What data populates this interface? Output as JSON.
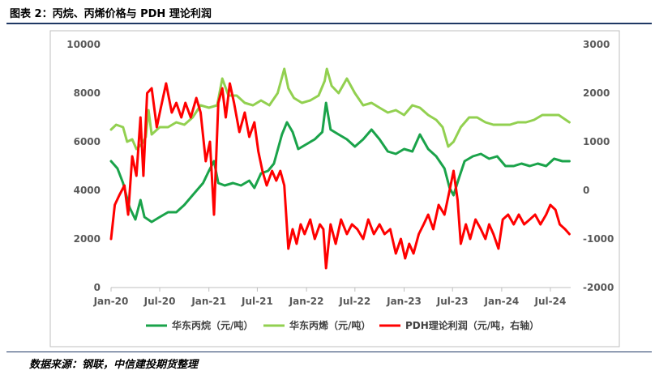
{
  "figure": {
    "title": "图表 2：丙烷、丙烯价格与 PDH 理论利润",
    "source": "数据来源：钢联，中信建投期货整理"
  },
  "colors": {
    "propane": "#1aa34a",
    "propylene": "#92d050",
    "pdh": "#ff0000",
    "axis": "#bfbfbf",
    "tick_text": "#595959"
  },
  "chart_data": {
    "type": "line",
    "title": "",
    "xlabel": "",
    "ylabel": "",
    "x_ticks": [
      "Jan-20",
      "Jul-20",
      "Jan-21",
      "Jul-21",
      "Jan-22",
      "Jul-22",
      "Jan-23",
      "Jul-23",
      "Jan-24",
      "Jul-24"
    ],
    "x_range": [
      "2020-01-01",
      "2024-09-15"
    ],
    "y_left": {
      "ylim": [
        0,
        10000
      ],
      "ticks": [
        "0",
        "2000",
        "4000",
        "6000",
        "8000",
        "10000"
      ]
    },
    "y_right": {
      "ylim": [
        -2000,
        3000
      ],
      "ticks": [
        "-2000",
        "-1000",
        "0",
        "1000",
        "2000",
        "3000"
      ]
    },
    "legend_position": "bottom",
    "grid": false,
    "series": [
      {
        "name": "华东丙烷（元/吨）",
        "axis": "left",
        "color": "#1aa34a",
        "points": [
          [
            "2020-01-01",
            5200
          ],
          [
            "2020-01-25",
            4900
          ],
          [
            "2020-02-15",
            4300
          ],
          [
            "2020-03-10",
            3300
          ],
          [
            "2020-04-01",
            2800
          ],
          [
            "2020-04-20",
            3600
          ],
          [
            "2020-05-05",
            2900
          ],
          [
            "2020-06-01",
            2700
          ],
          [
            "2020-07-01",
            2900
          ],
          [
            "2020-08-01",
            3100
          ],
          [
            "2020-09-01",
            3100
          ],
          [
            "2020-10-01",
            3400
          ],
          [
            "2020-11-01",
            3800
          ],
          [
            "2020-12-10",
            4300
          ],
          [
            "2021-01-01",
            4800
          ],
          [
            "2021-01-20",
            5200
          ],
          [
            "2021-02-05",
            4300
          ],
          [
            "2021-03-01",
            4200
          ],
          [
            "2021-04-01",
            4300
          ],
          [
            "2021-05-01",
            4200
          ],
          [
            "2021-06-01",
            4400
          ],
          [
            "2021-06-20",
            4100
          ],
          [
            "2021-07-15",
            4700
          ],
          [
            "2021-08-10",
            4800
          ],
          [
            "2021-09-01",
            5100
          ],
          [
            "2021-10-01",
            6300
          ],
          [
            "2021-10-20",
            6800
          ],
          [
            "2021-11-10",
            6400
          ],
          [
            "2021-12-01",
            5700
          ],
          [
            "2022-01-01",
            5900
          ],
          [
            "2022-02-01",
            6100
          ],
          [
            "2022-03-01",
            6400
          ],
          [
            "2022-03-15",
            7600
          ],
          [
            "2022-04-01",
            6500
          ],
          [
            "2022-05-01",
            6300
          ],
          [
            "2022-06-01",
            6100
          ],
          [
            "2022-07-01",
            5800
          ],
          [
            "2022-08-01",
            6100
          ],
          [
            "2022-09-01",
            6500
          ],
          [
            "2022-10-01",
            6100
          ],
          [
            "2022-11-01",
            5600
          ],
          [
            "2022-12-01",
            5500
          ],
          [
            "2023-01-01",
            5700
          ],
          [
            "2023-02-01",
            5600
          ],
          [
            "2023-03-01",
            6300
          ],
          [
            "2023-04-01",
            5700
          ],
          [
            "2023-05-01",
            5400
          ],
          [
            "2023-06-01",
            4900
          ],
          [
            "2023-06-20",
            4100
          ],
          [
            "2023-07-05",
            3800
          ],
          [
            "2023-07-25",
            4500
          ],
          [
            "2023-08-15",
            5200
          ],
          [
            "2023-09-15",
            5400
          ],
          [
            "2023-10-15",
            5500
          ],
          [
            "2023-11-15",
            5300
          ],
          [
            "2023-12-15",
            5400
          ],
          [
            "2024-01-15",
            5000
          ],
          [
            "2024-02-15",
            5000
          ],
          [
            "2024-03-15",
            5100
          ],
          [
            "2024-04-15",
            5000
          ],
          [
            "2024-05-15",
            5100
          ],
          [
            "2024-06-15",
            5000
          ],
          [
            "2024-07-15",
            5300
          ],
          [
            "2024-08-15",
            5200
          ],
          [
            "2024-09-10",
            5200
          ]
        ]
      },
      {
        "name": "华东丙烯（元/吨）",
        "axis": "left",
        "color": "#92d050",
        "points": [
          [
            "2020-01-01",
            6500
          ],
          [
            "2020-01-20",
            6700
          ],
          [
            "2020-02-15",
            6600
          ],
          [
            "2020-03-01",
            6000
          ],
          [
            "2020-03-20",
            6100
          ],
          [
            "2020-04-05",
            5700
          ],
          [
            "2020-04-25",
            5900
          ],
          [
            "2020-05-10",
            6200
          ],
          [
            "2020-05-20",
            7300
          ],
          [
            "2020-06-01",
            6300
          ],
          [
            "2020-07-01",
            6600
          ],
          [
            "2020-08-01",
            6600
          ],
          [
            "2020-09-01",
            6800
          ],
          [
            "2020-10-01",
            6700
          ],
          [
            "2020-11-01",
            7000
          ],
          [
            "2020-12-01",
            7500
          ],
          [
            "2021-01-01",
            7400
          ],
          [
            "2021-02-01",
            7500
          ],
          [
            "2021-02-20",
            8600
          ],
          [
            "2021-03-15",
            7900
          ],
          [
            "2021-04-15",
            7900
          ],
          [
            "2021-05-15",
            7600
          ],
          [
            "2021-06-15",
            7500
          ],
          [
            "2021-07-15",
            7700
          ],
          [
            "2021-08-15",
            7500
          ],
          [
            "2021-09-15",
            8000
          ],
          [
            "2021-10-10",
            9000
          ],
          [
            "2021-10-25",
            8200
          ],
          [
            "2021-11-15",
            7800
          ],
          [
            "2021-12-15",
            7600
          ],
          [
            "2022-01-15",
            7700
          ],
          [
            "2022-02-15",
            7900
          ],
          [
            "2022-03-10",
            8500
          ],
          [
            "2022-03-18",
            9000
          ],
          [
            "2022-04-05",
            8300
          ],
          [
            "2022-05-01",
            8000
          ],
          [
            "2022-06-01",
            8600
          ],
          [
            "2022-07-01",
            8000
          ],
          [
            "2022-08-01",
            7500
          ],
          [
            "2022-09-01",
            7600
          ],
          [
            "2022-10-01",
            7400
          ],
          [
            "2022-11-01",
            7200
          ],
          [
            "2022-12-01",
            7300
          ],
          [
            "2023-01-01",
            7100
          ],
          [
            "2023-02-01",
            7500
          ],
          [
            "2023-03-01",
            7400
          ],
          [
            "2023-04-01",
            7100
          ],
          [
            "2023-05-01",
            6900
          ],
          [
            "2023-05-25",
            6600
          ],
          [
            "2023-06-15",
            5800
          ],
          [
            "2023-07-05",
            6000
          ],
          [
            "2023-08-01",
            6600
          ],
          [
            "2023-09-01",
            7000
          ],
          [
            "2023-10-01",
            7000
          ],
          [
            "2023-11-01",
            6800
          ],
          [
            "2023-12-01",
            6700
          ],
          [
            "2024-01-01",
            6700
          ],
          [
            "2024-02-01",
            6700
          ],
          [
            "2024-03-01",
            6800
          ],
          [
            "2024-04-01",
            6800
          ],
          [
            "2024-05-01",
            6900
          ],
          [
            "2024-06-01",
            7100
          ],
          [
            "2024-07-01",
            7100
          ],
          [
            "2024-08-01",
            7100
          ],
          [
            "2024-09-10",
            6800
          ]
        ]
      },
      {
        "name": "PDH理论利润（元/吨，右轴）",
        "axis": "right",
        "color": "#ff0000",
        "points": [
          [
            "2020-01-01",
            -1000
          ],
          [
            "2020-01-15",
            -300
          ],
          [
            "2020-02-01",
            -100
          ],
          [
            "2020-02-20",
            100
          ],
          [
            "2020-03-05",
            -500
          ],
          [
            "2020-03-20",
            700
          ],
          [
            "2020-04-05",
            300
          ],
          [
            "2020-04-20",
            1500
          ],
          [
            "2020-05-01",
            300
          ],
          [
            "2020-05-15",
            2000
          ],
          [
            "2020-06-01",
            2100
          ],
          [
            "2020-06-20",
            1300
          ],
          [
            "2020-07-05",
            1700
          ],
          [
            "2020-07-25",
            2200
          ],
          [
            "2020-08-15",
            1600
          ],
          [
            "2020-09-01",
            1800
          ],
          [
            "2020-09-20",
            1500
          ],
          [
            "2020-10-05",
            1800
          ],
          [
            "2020-10-25",
            1500
          ],
          [
            "2020-11-15",
            1900
          ],
          [
            "2020-12-01",
            1600
          ],
          [
            "2020-12-20",
            600
          ],
          [
            "2021-01-05",
            1000
          ],
          [
            "2021-01-20",
            -500
          ],
          [
            "2021-02-05",
            1800
          ],
          [
            "2021-02-20",
            2100
          ],
          [
            "2021-03-05",
            1500
          ],
          [
            "2021-03-20",
            2200
          ],
          [
            "2021-04-05",
            1800
          ],
          [
            "2021-04-25",
            1200
          ],
          [
            "2021-05-15",
            1600
          ],
          [
            "2021-06-01",
            1100
          ],
          [
            "2021-06-20",
            1400
          ],
          [
            "2021-07-05",
            800
          ],
          [
            "2021-07-20",
            400
          ],
          [
            "2021-08-05",
            100
          ],
          [
            "2021-08-25",
            400
          ],
          [
            "2021-09-10",
            200
          ],
          [
            "2021-09-25",
            400
          ],
          [
            "2021-10-10",
            100
          ],
          [
            "2021-10-25",
            -1200
          ],
          [
            "2021-11-10",
            -800
          ],
          [
            "2021-11-25",
            -1100
          ],
          [
            "2021-12-10",
            -700
          ],
          [
            "2021-12-25",
            -900
          ],
          [
            "2022-01-15",
            -600
          ],
          [
            "2022-02-01",
            -1000
          ],
          [
            "2022-02-20",
            -700
          ],
          [
            "2022-03-05",
            -800
          ],
          [
            "2022-03-15",
            -1600
          ],
          [
            "2022-04-01",
            -700
          ],
          [
            "2022-04-20",
            -1100
          ],
          [
            "2022-05-10",
            -600
          ],
          [
            "2022-06-01",
            -900
          ],
          [
            "2022-06-20",
            -700
          ],
          [
            "2022-07-10",
            -800
          ],
          [
            "2022-08-01",
            -1000
          ],
          [
            "2022-08-20",
            -600
          ],
          [
            "2022-09-10",
            -900
          ],
          [
            "2022-10-01",
            -700
          ],
          [
            "2022-10-20",
            -900
          ],
          [
            "2022-11-10",
            -800
          ],
          [
            "2022-12-01",
            -1300
          ],
          [
            "2022-12-20",
            -1000
          ],
          [
            "2023-01-05",
            -1400
          ],
          [
            "2023-01-20",
            -1100
          ],
          [
            "2023-02-05",
            -1300
          ],
          [
            "2023-02-25",
            -900
          ],
          [
            "2023-03-15",
            -700
          ],
          [
            "2023-04-01",
            -500
          ],
          [
            "2023-04-20",
            -800
          ],
          [
            "2023-05-10",
            -300
          ],
          [
            "2023-06-01",
            -500
          ],
          [
            "2023-06-20",
            0
          ],
          [
            "2023-07-05",
            400
          ],
          [
            "2023-07-20",
            -200
          ],
          [
            "2023-08-01",
            -1100
          ],
          [
            "2023-08-20",
            -700
          ],
          [
            "2023-09-05",
            -1000
          ],
          [
            "2023-09-25",
            -600
          ],
          [
            "2023-10-15",
            -800
          ],
          [
            "2023-11-01",
            -1000
          ],
          [
            "2023-11-15",
            -700
          ],
          [
            "2023-12-01",
            -900
          ],
          [
            "2023-12-20",
            -1200
          ],
          [
            "2024-01-05",
            -600
          ],
          [
            "2024-01-25",
            -500
          ],
          [
            "2024-02-15",
            -700
          ],
          [
            "2024-03-05",
            -500
          ],
          [
            "2024-03-25",
            -700
          ],
          [
            "2024-04-15",
            -600
          ],
          [
            "2024-05-05",
            -500
          ],
          [
            "2024-05-25",
            -700
          ],
          [
            "2024-06-15",
            -500
          ],
          [
            "2024-07-01",
            -300
          ],
          [
            "2024-07-20",
            -400
          ],
          [
            "2024-08-05",
            -700
          ],
          [
            "2024-08-25",
            -800
          ],
          [
            "2024-09-10",
            -900
          ]
        ]
      }
    ]
  }
}
